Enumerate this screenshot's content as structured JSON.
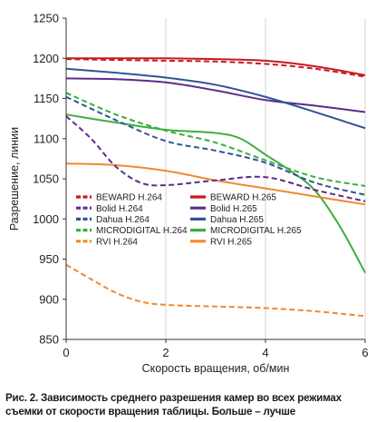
{
  "caption": "Рис. 2. Зависимость среднего разрешения камер во всех режимах съемки от скорости вращения таблицы. Больше – лучше",
  "colors": {
    "BEWARD": "#c8191e",
    "Bolid": "#5b2d8a",
    "Dahua": "#2f5597",
    "MICRODIGITAL": "#3cae3c",
    "RVI": "#ef8a2e"
  },
  "chart_data": {
    "type": "line",
    "title": "",
    "xlabel": "Скорость вращения, об/мин",
    "ylabel": "Разрешение, линии",
    "xlim": [
      0,
      6
    ],
    "ylim": [
      850,
      1250
    ],
    "xticks": [
      0,
      2,
      4,
      6
    ],
    "yticks": [
      850,
      900,
      950,
      1000,
      1050,
      1100,
      1150,
      1200,
      1250
    ],
    "grid": "vertical",
    "legend_position": "lower-center (inside plot, two columns)",
    "series": [
      {
        "name": "BEWARD H.264",
        "color": "BEWARD",
        "dashed": true,
        "x": [
          0,
          1,
          2,
          3,
          4,
          5,
          6
        ],
        "y": [
          1199,
          1198,
          1197,
          1196,
          1193,
          1187,
          1177
        ]
      },
      {
        "name": "BEWARD H.265",
        "color": "BEWARD",
        "dashed": false,
        "x": [
          0,
          1,
          2,
          3,
          4,
          5,
          6
        ],
        "y": [
          1200,
          1200,
          1200,
          1199,
          1197,
          1190,
          1179
        ]
      },
      {
        "name": "Bolid H.264",
        "color": "Bolid",
        "dashed": true,
        "x": [
          0,
          0.5,
          1,
          1.5,
          2,
          3,
          4,
          5,
          6
        ],
        "y": [
          1128,
          1100,
          1065,
          1045,
          1042,
          1048,
          1052,
          1036,
          1022
        ]
      },
      {
        "name": "Bolid H.265",
        "color": "Bolid",
        "dashed": false,
        "x": [
          0,
          1,
          2,
          3,
          4,
          5,
          6
        ],
        "y": [
          1175,
          1174,
          1170,
          1160,
          1148,
          1141,
          1133
        ]
      },
      {
        "name": "Dahua H.264",
        "color": "Dahua",
        "dashed": true,
        "x": [
          0,
          1,
          2,
          3,
          4,
          5,
          6
        ],
        "y": [
          1152,
          1123,
          1097,
          1085,
          1070,
          1045,
          1030
        ]
      },
      {
        "name": "Dahua H.265",
        "color": "Dahua",
        "dashed": false,
        "x": [
          0,
          1,
          2,
          3,
          4,
          5,
          6
        ],
        "y": [
          1187,
          1182,
          1176,
          1167,
          1152,
          1133,
          1113
        ]
      },
      {
        "name": "MICRODIGITAL H.264",
        "color": "MICRODIGITAL",
        "dashed": true,
        "x": [
          0,
          1,
          2,
          3,
          4,
          5,
          6
        ],
        "y": [
          1157,
          1130,
          1110,
          1095,
          1073,
          1052,
          1041
        ]
      },
      {
        "name": "MICRODIGITAL H.265",
        "color": "MICRODIGITAL",
        "dashed": false,
        "x": [
          0,
          1,
          2,
          3,
          3.5,
          4,
          4.5,
          5,
          5.5,
          6
        ],
        "y": [
          1130,
          1120,
          1111,
          1107,
          1100,
          1080,
          1060,
          1035,
          990,
          933
        ]
      },
      {
        "name": "RVI H.264",
        "color": "RVI",
        "dashed": true,
        "x": [
          0,
          0.5,
          1,
          1.5,
          2,
          3,
          4,
          5,
          6
        ],
        "y": [
          943,
          925,
          908,
          897,
          893,
          891,
          889,
          885,
          879
        ]
      },
      {
        "name": "RVI H.265",
        "color": "RVI",
        "dashed": false,
        "x": [
          0,
          1,
          2,
          3,
          4,
          5,
          6
        ],
        "y": [
          1069,
          1067,
          1060,
          1048,
          1038,
          1028,
          1018
        ]
      }
    ],
    "legend_order": [
      "BEWARD H.264",
      "BEWARD H.265",
      "Bolid H.264",
      "Bolid H.265",
      "Dahua H.264",
      "Dahua H.265",
      "MICRODIGITAL H.264",
      "MICRODIGITAL H.265",
      "RVI H.264",
      "RVI H.265"
    ]
  }
}
